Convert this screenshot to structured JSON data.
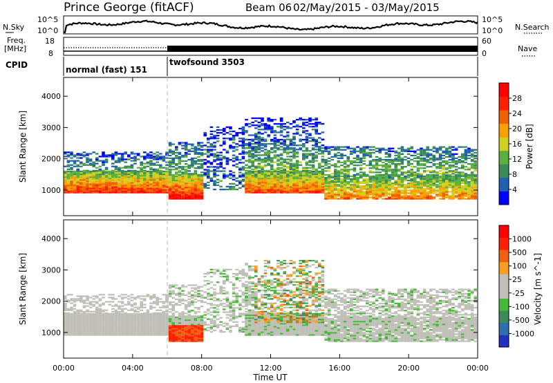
{
  "header": {
    "station": "Prince George (fitACF)",
    "beam": "Beam 06",
    "dates": "02/May/2015 - 03/May/2015"
  },
  "noise_panel": {
    "left_label": "N.Sky",
    "right_label": "N.Search",
    "left_ticks": [
      "10^5",
      "10^0"
    ],
    "right_ticks": [
      "10^5",
      "10^0"
    ]
  },
  "freq_panel": {
    "left_label_1": "Freq.",
    "left_label_2": "[MHz]",
    "right_label": "Nave",
    "left_ticks": [
      "18",
      "8"
    ],
    "right_ticks": [
      "60",
      "0"
    ]
  },
  "cpid_panel": {
    "label": "CPID",
    "modes": [
      {
        "name": "normal (fast) 151",
        "start_hour": 0,
        "end_hour": 6
      },
      {
        "name": "twofsound 3503",
        "start_hour": 6,
        "end_hour": 24
      }
    ]
  },
  "chart_data": [
    {
      "type": "heatmap",
      "name": "power",
      "ylabel": "Slant Range [km]",
      "xlabel": "",
      "ylim": [
        180,
        4600
      ],
      "yticks": [
        "1000",
        "2000",
        "3000",
        "4000"
      ],
      "xlim": [
        0,
        24
      ],
      "colorbar": {
        "label": "Power [dB]",
        "ticks": [
          "4",
          "8",
          "12",
          "16",
          "20",
          "24",
          "28"
        ],
        "range": [
          0,
          30
        ],
        "colors": [
          "#0000ff",
          "#2060b0",
          "#3a8a5a",
          "#5cb040",
          "#d0d020",
          "#f8a000",
          "#f06000",
          "#ff2000",
          "#ff0000"
        ]
      }
    },
    {
      "type": "heatmap",
      "name": "velocity",
      "ylabel": "Slant Range [km]",
      "xlabel": "Time UT",
      "ylim": [
        180,
        4600
      ],
      "yticks": [
        "1000",
        "2000",
        "3000",
        "4000"
      ],
      "xlim": [
        0,
        24
      ],
      "xticks": [
        "00:00",
        "04:00",
        "08:00",
        "12:00",
        "16:00",
        "20:00",
        "00:00"
      ],
      "colorbar": {
        "label": "Velocity [m s^-1]",
        "ticks": [
          "1000",
          "500",
          "100",
          "25",
          "-25",
          "-100",
          "-500",
          "-1000"
        ],
        "colors": [
          "#2030c0",
          "#2f6fb0",
          "#3f8a5a",
          "#48b838",
          "#c0c0b8",
          "#c0c0b8",
          "#f5a020",
          "#f06010",
          "#ff2000",
          "#ff0000"
        ]
      }
    }
  ]
}
